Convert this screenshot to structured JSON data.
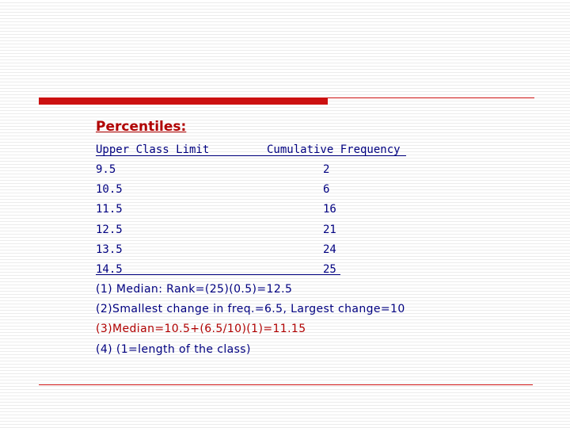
{
  "title": "Percentiles:",
  "table": {
    "headers": [
      "Upper Class Limit",
      "Cumulative Frequency"
    ],
    "rows": [
      [
        "9.5",
        "2"
      ],
      [
        "10.5",
        "6"
      ],
      [
        "11.5",
        "16"
      ],
      [
        "12.5",
        "21"
      ],
      [
        "13.5",
        "24"
      ],
      [
        "14.5",
        "25"
      ]
    ]
  },
  "notes": [
    "(1) Median: Rank=(25)(0.5)=12.5",
    "(2)Smallest change in freq.=6.5, Largest change=10",
    "(3)Median=10.5+(6.5/10)(1)=11.15",
    "(4) (1=length  of the class)"
  ],
  "colors": {
    "accent_red": "#cc1111",
    "title_red": "#b00000",
    "text_navy": "#000080"
  }
}
